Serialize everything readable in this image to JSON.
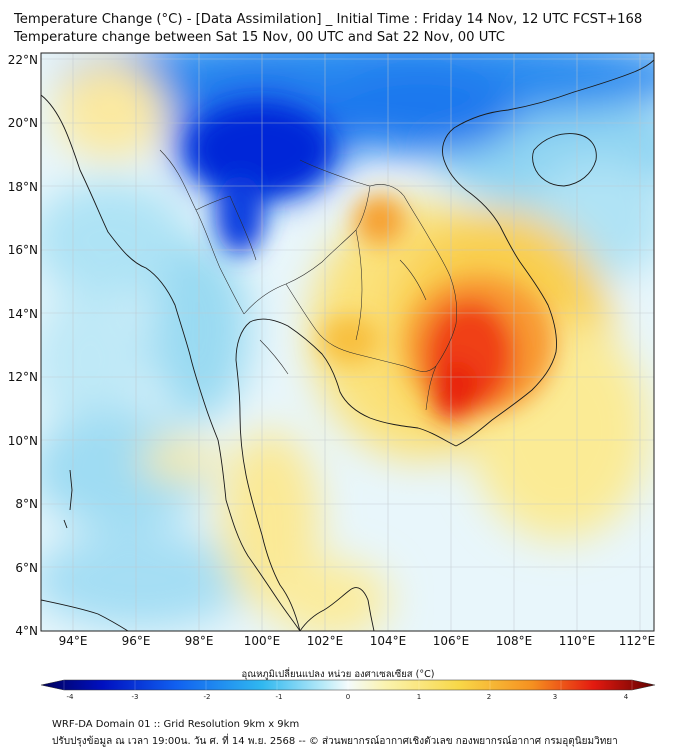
{
  "title": {
    "line1": "Temperature Change (°C) - [Data Assimilation] _ Initial Time : Friday 14 Nov, 12 UTC FCST+168",
    "line2": "Temperature change between Sat 15 Nov, 00 UTC and Sat 22 Nov, 00 UTC"
  },
  "axes": {
    "lat_labels": [
      "22°N",
      "20°N",
      "18°N",
      "16°N",
      "14°N",
      "12°N",
      "10°N",
      "8°N",
      "6°N",
      "4°N"
    ],
    "lon_labels": [
      "94°E",
      "96°E",
      "98°E",
      "100°E",
      "102°E",
      "104°E",
      "106°E",
      "108°E",
      "110°E",
      "112°E"
    ]
  },
  "colorbar": {
    "title": "อุณหภูมิเปลี่ยนแปลง หน่วย องศาเซลเซียส (°C)",
    "ticks": [
      "-4",
      "-3",
      "-2",
      "-1",
      "0",
      "1",
      "2",
      "3",
      "4"
    ]
  },
  "footer": {
    "line1": "WRF-DA Domain 01 :: Grid Resolution 9km x 9km",
    "line2": "ปรับปรุงข้อมูล ณ เวลา 19:00น. วัน ศ. ที่ 14 พ.ย. 2568 -- © ส่วนพยากรณ์อากาศเชิงตัวเลข กองพยากรณ์อากาศ กรมอุตุนิยมวิทยา"
  },
  "colors": {
    "cold_strong": "#0020d0",
    "cold": "#1f8ff0",
    "cool": "#8fd8f5",
    "neutral": "#e8f7fb",
    "warm": "#fbe88a",
    "hot": "#f8b030",
    "very_hot": "#e82010"
  }
}
